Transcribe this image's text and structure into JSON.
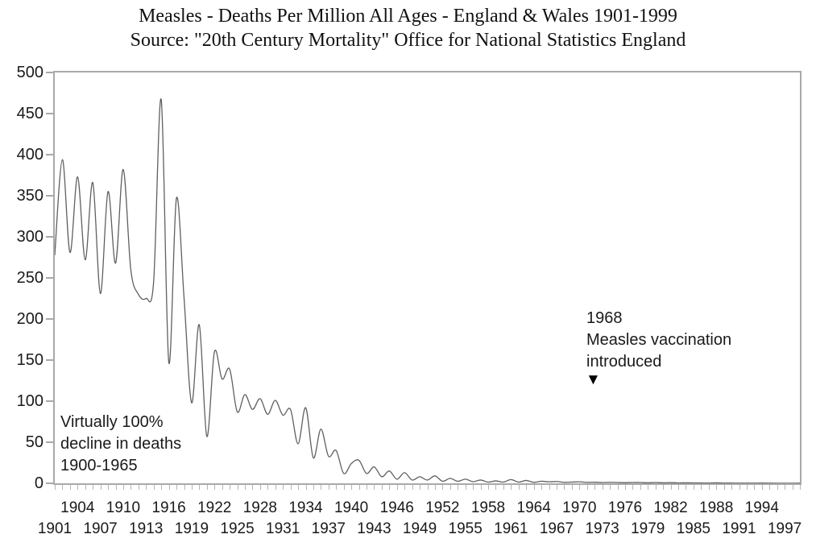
{
  "chart_data": {
    "type": "line",
    "title": "Measles - Deaths Per Million All Ages - England & Wales 1901-1999",
    "subtitle": "Source: \"20th Century Mortality\" Office for National Statistics England",
    "xlabel": "",
    "ylabel": "",
    "ylim": [
      0,
      500
    ],
    "yticks": [
      0,
      50,
      100,
      150,
      200,
      250,
      300,
      350,
      400,
      450,
      500
    ],
    "grid": false,
    "legend": "none",
    "line_color": "#606060",
    "axis_color": "#a9a9a9",
    "tick_color": "#b5b5b5",
    "text_color": "#1a1a1a",
    "x": [
      1901,
      1902,
      1903,
      1904,
      1905,
      1906,
      1907,
      1908,
      1909,
      1910,
      1911,
      1912,
      1913,
      1914,
      1915,
      1916,
      1917,
      1918,
      1919,
      1920,
      1921,
      1922,
      1923,
      1924,
      1925,
      1926,
      1927,
      1928,
      1929,
      1930,
      1931,
      1932,
      1933,
      1934,
      1935,
      1936,
      1937,
      1938,
      1939,
      1940,
      1941,
      1942,
      1943,
      1944,
      1945,
      1946,
      1947,
      1948,
      1949,
      1950,
      1951,
      1952,
      1953,
      1954,
      1955,
      1956,
      1957,
      1958,
      1959,
      1960,
      1961,
      1962,
      1963,
      1964,
      1965,
      1966,
      1967,
      1968,
      1969,
      1970,
      1971,
      1972,
      1973,
      1974,
      1975,
      1976,
      1977,
      1978,
      1979,
      1980,
      1981,
      1982,
      1983,
      1984,
      1985,
      1986,
      1987,
      1988,
      1989,
      1990,
      1991,
      1992,
      1993,
      1994,
      1995,
      1996,
      1997,
      1998,
      1999
    ],
    "values": [
      278,
      394,
      281,
      373,
      272,
      366,
      231,
      355,
      268,
      382,
      260,
      230,
      225,
      245,
      467,
      147,
      347,
      226,
      98,
      193,
      57,
      160,
      127,
      139,
      87,
      108,
      90,
      103,
      84,
      101,
      83,
      90,
      48,
      92,
      31,
      66,
      33,
      40,
      12,
      24,
      28,
      12,
      20,
      8,
      15,
      5,
      13,
      4,
      8,
      4,
      9,
      2.5,
      6,
      2.5,
      5,
      2,
      4,
      1.5,
      3,
      1.5,
      4.5,
      1.5,
      3.5,
      1.2,
      2.5,
      1.8,
      2.2,
      1.2,
      1.5,
      1.8,
      1.2,
      1.3,
      1,
      1.2,
      1,
      0.8,
      1,
      1,
      0.6,
      1,
      0.6,
      0.8,
      0.5,
      0.6,
      0.5,
      0.5,
      0.3,
      0.6,
      0.3,
      0.3,
      0.2,
      0.2,
      0.2,
      0.3,
      0.2,
      0.1,
      0.1,
      0.1,
      0.2
    ],
    "xtick_label_rows": {
      "row1": [
        "1904",
        "1910",
        "1916",
        "1922",
        "1928",
        "1934",
        "1940",
        "1946",
        "1952",
        "1958",
        "1964",
        "1970",
        "1976",
        "1982",
        "1988",
        "1994"
      ],
      "row1_years": [
        1904,
        1910,
        1916,
        1922,
        1928,
        1934,
        1940,
        1946,
        1952,
        1958,
        1964,
        1970,
        1976,
        1982,
        1988,
        1994
      ],
      "row2": [
        "1901",
        "1907",
        "1913",
        "1919",
        "1925",
        "1931",
        "1937",
        "1943",
        "1949",
        "1955",
        "1961",
        "1967",
        "1973",
        "1979",
        "1985",
        "1991",
        "1997"
      ],
      "row2_years": [
        1901,
        1907,
        1913,
        1919,
        1925,
        1931,
        1937,
        1943,
        1949,
        1955,
        1961,
        1967,
        1973,
        1979,
        1985,
        1991,
        1997
      ]
    },
    "annotations": {
      "decline": {
        "lines": [
          "Virtually 100%",
          "decline in deaths",
          "1900-1965"
        ]
      },
      "vaccine": {
        "lines": [
          "1968",
          "Measles vaccination",
          "introduced"
        ],
        "marker_glyph": "▼"
      }
    }
  }
}
